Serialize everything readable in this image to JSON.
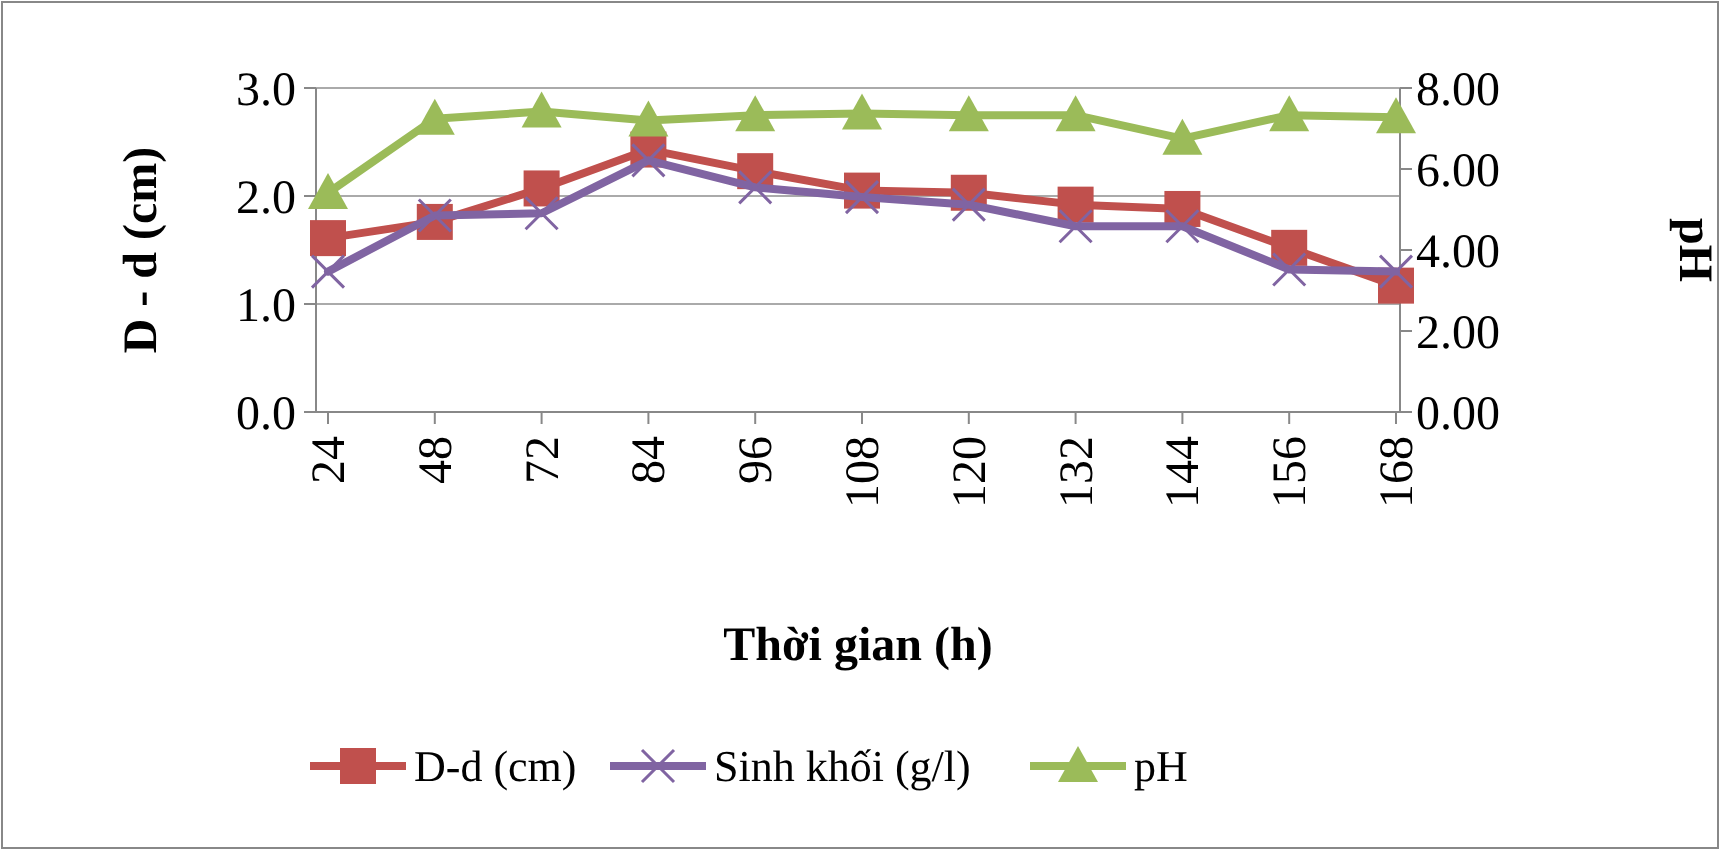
{
  "chart_data": {
    "type": "line",
    "xlabel": "Thời gian (h)",
    "ylabel": "D - d (cm)",
    "y2label": "pH",
    "categories": [
      "24",
      "48",
      "72",
      "84",
      "96",
      "108",
      "120",
      "132",
      "144",
      "156",
      "168"
    ],
    "series": [
      {
        "name": "D-d (cm)",
        "color": "#c0504d",
        "marker": "square",
        "values": [
          1.61,
          1.76,
          2.07,
          2.43,
          2.23,
          2.05,
          2.03,
          1.92,
          1.88,
          1.52,
          1.17
        ]
      },
      {
        "name": "Sinh khối (g/l)",
        "color": "#8064a2",
        "marker": "cross",
        "values": [
          1.3,
          1.82,
          1.84,
          2.33,
          2.08,
          1.99,
          1.92,
          1.72,
          1.72,
          1.32,
          1.3
        ]
      },
      {
        "name": "pH",
        "color": "#9bbb59",
        "marker": "triangle",
        "axis": "y2",
        "values": [
          5.41,
          7.24,
          7.42,
          7.2,
          7.33,
          7.37,
          7.33,
          7.33,
          6.75,
          7.33,
          7.28
        ]
      }
    ],
    "ylim": [
      0,
      3
    ],
    "yticks": [
      {
        "value": 0,
        "label": "0.0"
      },
      {
        "value": 1,
        "label": "1.0"
      },
      {
        "value": 2,
        "label": "2.0"
      },
      {
        "value": 3,
        "label": "3.0"
      }
    ],
    "y2lim": [
      0,
      8
    ],
    "y2ticks": [
      {
        "value": 0,
        "label": "0.00"
      },
      {
        "value": 2,
        "label": "2.00"
      },
      {
        "value": 4,
        "label": "4.00"
      },
      {
        "value": 6,
        "label": "6.00"
      },
      {
        "value": 8,
        "label": "8.00"
      }
    ],
    "grid": "y",
    "legend": "bottom",
    "line_style": "solid"
  }
}
